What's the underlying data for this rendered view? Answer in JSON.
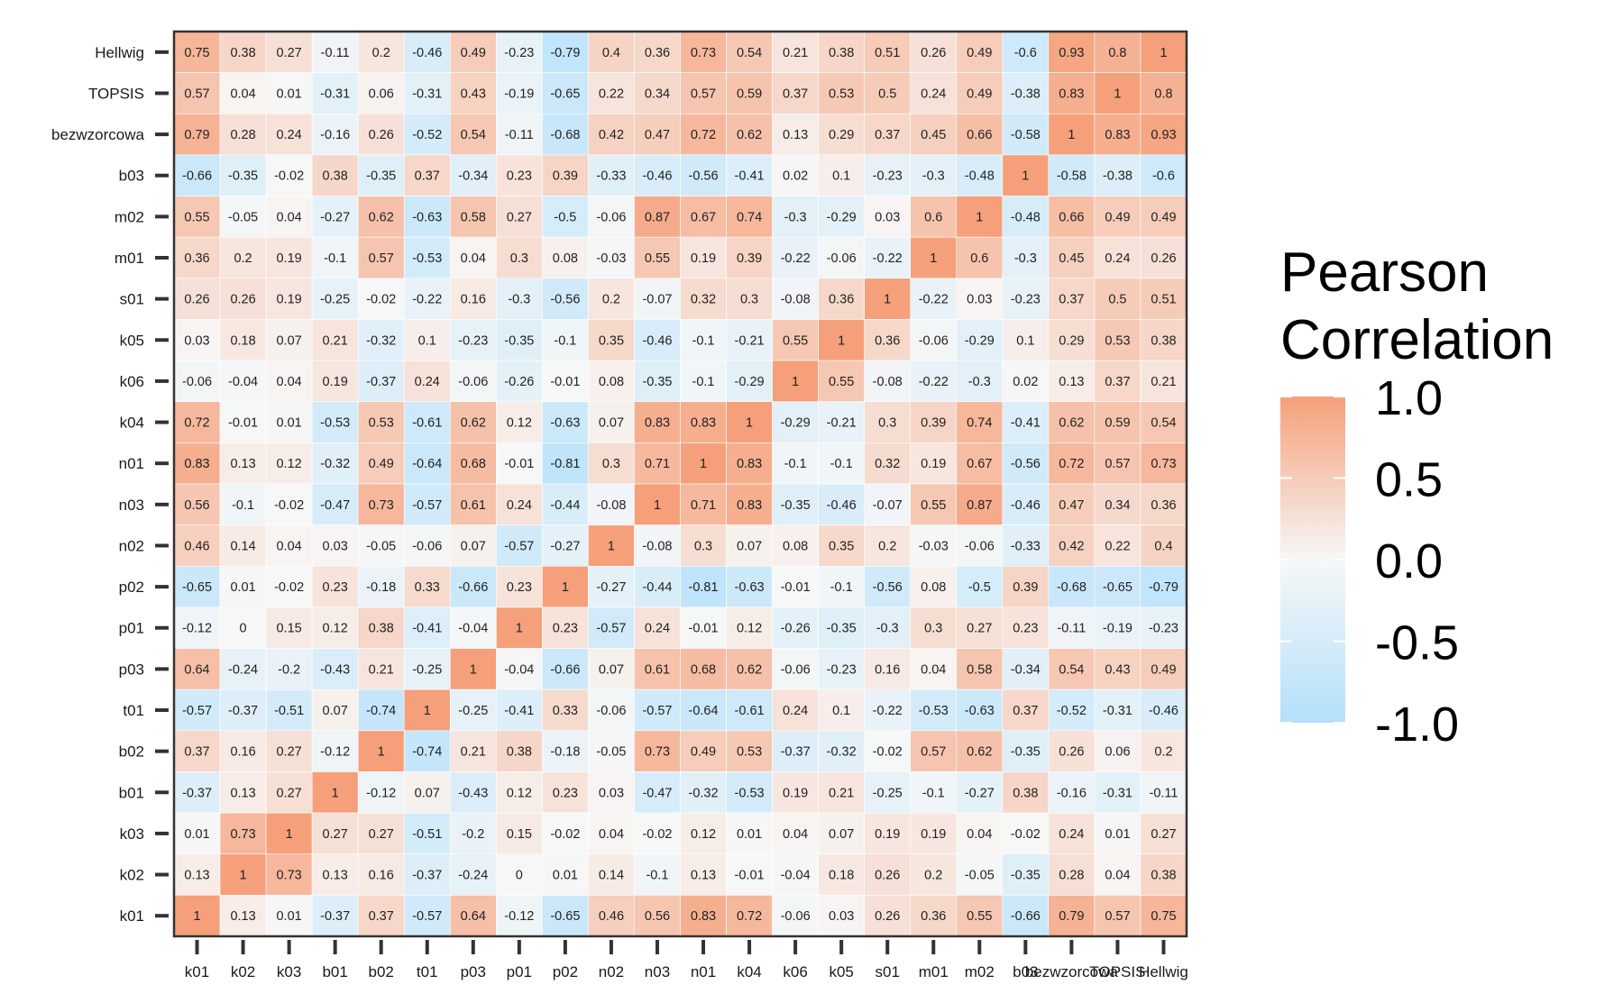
{
  "chart_data": {
    "type": "heatmap",
    "title": "",
    "xlabel": "",
    "ylabel": "",
    "variables": [
      "k01",
      "k02",
      "k03",
      "b01",
      "b02",
      "t01",
      "p03",
      "p01",
      "p02",
      "n02",
      "n03",
      "n01",
      "k04",
      "k06",
      "k05",
      "s01",
      "m01",
      "m02",
      "b03",
      "bezwzorcowa",
      "TOPSIS",
      "Hellwig"
    ],
    "rows_top_to_bottom": [
      "Hellwig",
      "TOPSIS",
      "bezwzorcowa",
      "b03",
      "m02",
      "m01",
      "s01",
      "k05",
      "k06",
      "k04",
      "n01",
      "n03",
      "n02",
      "p02",
      "p01",
      "p03",
      "t01",
      "b02",
      "b01",
      "k03",
      "k02",
      "k01"
    ],
    "values_top_to_bottom": [
      [
        0.75,
        0.38,
        0.27,
        -0.11,
        0.2,
        -0.46,
        0.49,
        -0.23,
        -0.79,
        0.4,
        0.36,
        0.73,
        0.54,
        0.21,
        0.38,
        0.51,
        0.26,
        0.49,
        -0.6,
        0.93,
        0.8,
        1
      ],
      [
        0.57,
        0.04,
        0.01,
        -0.31,
        0.06,
        -0.31,
        0.43,
        -0.19,
        -0.65,
        0.22,
        0.34,
        0.57,
        0.59,
        0.37,
        0.53,
        0.5,
        0.24,
        0.49,
        -0.38,
        0.83,
        1,
        0.8
      ],
      [
        0.79,
        0.28,
        0.24,
        -0.16,
        0.26,
        -0.52,
        0.54,
        -0.11,
        -0.68,
        0.42,
        0.47,
        0.72,
        0.62,
        0.13,
        0.29,
        0.37,
        0.45,
        0.66,
        -0.58,
        1,
        0.83,
        0.93
      ],
      [
        -0.66,
        -0.35,
        -0.02,
        0.38,
        -0.35,
        0.37,
        -0.34,
        0.23,
        0.39,
        -0.33,
        -0.46,
        -0.56,
        -0.41,
        0.02,
        0.1,
        -0.23,
        -0.3,
        -0.48,
        1,
        -0.58,
        -0.38,
        -0.6
      ],
      [
        0.55,
        -0.05,
        0.04,
        -0.27,
        0.62,
        -0.63,
        0.58,
        0.27,
        -0.5,
        -0.06,
        0.87,
        0.67,
        0.74,
        -0.3,
        -0.29,
        0.03,
        0.6,
        1,
        -0.48,
        0.66,
        0.49,
        0.49
      ],
      [
        0.36,
        0.2,
        0.19,
        -0.1,
        0.57,
        -0.53,
        0.04,
        0.3,
        0.08,
        -0.03,
        0.55,
        0.19,
        0.39,
        -0.22,
        -0.06,
        -0.22,
        1,
        0.6,
        -0.3,
        0.45,
        0.24,
        0.26
      ],
      [
        0.26,
        0.26,
        0.19,
        -0.25,
        -0.02,
        -0.22,
        0.16,
        -0.3,
        -0.56,
        0.2,
        -0.07,
        0.32,
        0.3,
        -0.08,
        0.36,
        1,
        -0.22,
        0.03,
        -0.23,
        0.37,
        0.5,
        0.51
      ],
      [
        0.03,
        0.18,
        0.07,
        0.21,
        -0.32,
        0.1,
        -0.23,
        -0.35,
        -0.1,
        0.35,
        -0.46,
        -0.1,
        -0.21,
        0.55,
        1,
        0.36,
        -0.06,
        -0.29,
        0.1,
        0.29,
        0.53,
        0.38
      ],
      [
        -0.06,
        -0.04,
        0.04,
        0.19,
        -0.37,
        0.24,
        -0.06,
        -0.26,
        -0.01,
        0.08,
        -0.35,
        -0.1,
        -0.29,
        1,
        0.55,
        -0.08,
        -0.22,
        -0.3,
        0.02,
        0.13,
        0.37,
        0.21
      ],
      [
        0.72,
        -0.01,
        0.01,
        -0.53,
        0.53,
        -0.61,
        0.62,
        0.12,
        -0.63,
        0.07,
        0.83,
        0.83,
        1,
        -0.29,
        -0.21,
        0.3,
        0.39,
        0.74,
        -0.41,
        0.62,
        0.59,
        0.54
      ],
      [
        0.83,
        0.13,
        0.12,
        -0.32,
        0.49,
        -0.64,
        0.68,
        -0.01,
        -0.81,
        0.3,
        0.71,
        1,
        0.83,
        -0.1,
        -0.1,
        0.32,
        0.19,
        0.67,
        -0.56,
        0.72,
        0.57,
        0.73
      ],
      [
        0.56,
        -0.1,
        -0.02,
        -0.47,
        0.73,
        -0.57,
        0.61,
        0.24,
        -0.44,
        -0.08,
        1,
        0.71,
        0.83,
        -0.35,
        -0.46,
        -0.07,
        0.55,
        0.87,
        -0.46,
        0.47,
        0.34,
        0.36
      ],
      [
        0.46,
        0.14,
        0.04,
        0.03,
        -0.05,
        -0.06,
        0.07,
        -0.57,
        -0.27,
        1,
        -0.08,
        0.3,
        0.07,
        0.08,
        0.35,
        0.2,
        -0.03,
        -0.06,
        -0.33,
        0.42,
        0.22,
        0.4
      ],
      [
        -0.65,
        0.01,
        -0.02,
        0.23,
        -0.18,
        0.33,
        -0.66,
        0.23,
        1,
        -0.27,
        -0.44,
        -0.81,
        -0.63,
        -0.01,
        -0.1,
        -0.56,
        0.08,
        -0.5,
        0.39,
        -0.68,
        -0.65,
        -0.79
      ],
      [
        -0.12,
        0,
        0.15,
        0.12,
        0.38,
        -0.41,
        -0.04,
        1,
        0.23,
        -0.57,
        0.24,
        -0.01,
        0.12,
        -0.26,
        -0.35,
        -0.3,
        0.3,
        0.27,
        0.23,
        -0.11,
        -0.19,
        -0.23
      ],
      [
        0.64,
        -0.24,
        -0.2,
        -0.43,
        0.21,
        -0.25,
        1,
        -0.04,
        -0.66,
        0.07,
        0.61,
        0.68,
        0.62,
        -0.06,
        -0.23,
        0.16,
        0.04,
        0.58,
        -0.34,
        0.54,
        0.43,
        0.49
      ],
      [
        -0.57,
        -0.37,
        -0.51,
        0.07,
        -0.74,
        1,
        -0.25,
        -0.41,
        0.33,
        -0.06,
        -0.57,
        -0.64,
        -0.61,
        0.24,
        0.1,
        -0.22,
        -0.53,
        -0.63,
        0.37,
        -0.52,
        -0.31,
        -0.46
      ],
      [
        0.37,
        0.16,
        0.27,
        -0.12,
        1,
        -0.74,
        0.21,
        0.38,
        -0.18,
        -0.05,
        0.73,
        0.49,
        0.53,
        -0.37,
        -0.32,
        -0.02,
        0.57,
        0.62,
        -0.35,
        0.26,
        0.06,
        0.2
      ],
      [
        -0.37,
        0.13,
        0.27,
        1,
        -0.12,
        0.07,
        -0.43,
        0.12,
        0.23,
        0.03,
        -0.47,
        -0.32,
        -0.53,
        0.19,
        0.21,
        -0.25,
        -0.1,
        -0.27,
        0.38,
        -0.16,
        -0.31,
        -0.11
      ],
      [
        0.01,
        0.73,
        1,
        0.27,
        0.27,
        -0.51,
        -0.2,
        0.15,
        -0.02,
        0.04,
        -0.02,
        0.12,
        0.01,
        0.04,
        0.07,
        0.19,
        0.19,
        0.04,
        -0.02,
        0.24,
        0.01,
        0.27
      ],
      [
        0.13,
        1,
        0.73,
        0.13,
        0.16,
        -0.37,
        -0.24,
        0,
        0.01,
        0.14,
        -0.1,
        0.13,
        -0.01,
        -0.04,
        0.18,
        0.26,
        0.2,
        -0.05,
        -0.35,
        0.28,
        0.04,
        0.38
      ],
      [
        1,
        0.13,
        0.01,
        -0.37,
        0.37,
        -0.57,
        0.64,
        -0.12,
        -0.65,
        0.46,
        0.56,
        0.83,
        0.72,
        -0.06,
        0.03,
        0.26,
        0.36,
        0.55,
        -0.66,
        0.79,
        0.57,
        0.75
      ]
    ],
    "color_scale": {
      "min": -1,
      "max": 1,
      "low_color": "#b3e0fb",
      "mid_color": "#f7f7f7",
      "high_color": "#f5a07a"
    },
    "legend": {
      "title_line1": "Pearson",
      "title_line2": "Correlation",
      "placement": "right",
      "ticks": [
        1.0,
        0.5,
        0.0,
        -0.5,
        -1.0
      ],
      "tick_labels": [
        "1.0",
        "0.5",
        "0.0",
        "-0.5",
        "-1.0"
      ]
    },
    "grid": false
  }
}
